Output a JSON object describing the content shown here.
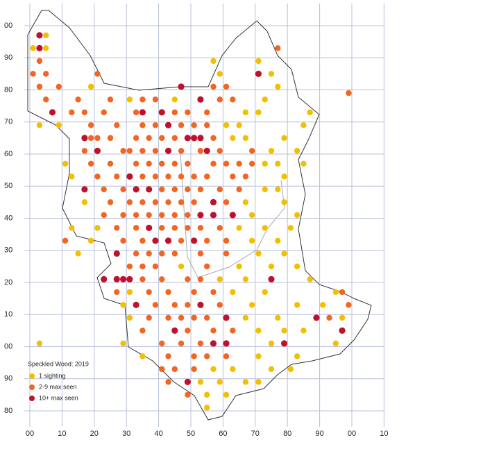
{
  "map": {
    "x_labels": [
      "00",
      "10",
      "20",
      "30",
      "40",
      "50",
      "60",
      "70",
      "80",
      "90",
      "00",
      "10"
    ],
    "y_labels": [
      "00",
      "90",
      "80",
      "70",
      "60",
      "50",
      "40",
      "30",
      "20",
      "10",
      "00",
      "90",
      "80"
    ],
    "legend": {
      "title": "Speckled Wood:  2019",
      "items": [
        {
          "label": "1 sighting",
          "color": "#f2c000"
        },
        {
          "label": "2-9 max seen",
          "color": "#f26522"
        },
        {
          "label": "10+ max seen",
          "color": "#c0102e"
        }
      ]
    },
    "dots": [
      [
        3,
        97,
        2
      ],
      [
        5,
        97,
        0
      ],
      [
        1,
        93,
        0
      ],
      [
        3,
        93,
        2
      ],
      [
        5,
        93,
        0
      ],
      [
        77,
        93,
        1
      ],
      [
        3,
        89,
        1
      ],
      [
        57,
        89,
        0
      ],
      [
        71,
        89,
        0
      ],
      [
        1,
        85,
        1
      ],
      [
        5,
        85,
        1
      ],
      [
        21,
        85,
        1
      ],
      [
        71,
        85,
        2
      ],
      [
        59,
        85,
        0
      ],
      [
        75,
        85,
        0
      ],
      [
        3,
        81,
        1
      ],
      [
        9,
        81,
        1
      ],
      [
        19,
        81,
        0
      ],
      [
        47,
        81,
        2
      ],
      [
        57,
        81,
        1
      ],
      [
        61,
        81,
        1
      ],
      [
        77,
        81,
        0
      ],
      [
        99,
        79,
        1
      ],
      [
        5,
        77,
        1
      ],
      [
        15,
        77,
        1
      ],
      [
        25,
        77,
        1
      ],
      [
        31,
        77,
        0
      ],
      [
        35,
        77,
        1
      ],
      [
        39,
        77,
        1
      ],
      [
        45,
        77,
        0
      ],
      [
        53,
        77,
        2
      ],
      [
        59,
        77,
        1
      ],
      [
        63,
        77,
        1
      ],
      [
        73,
        77,
        0
      ],
      [
        7,
        73,
        2
      ],
      [
        13,
        73,
        1
      ],
      [
        17,
        73,
        1
      ],
      [
        23,
        73,
        1
      ],
      [
        33,
        73,
        1
      ],
      [
        35,
        73,
        2
      ],
      [
        41,
        73,
        2
      ],
      [
        45,
        73,
        1
      ],
      [
        49,
        73,
        1
      ],
      [
        55,
        73,
        1
      ],
      [
        67,
        73,
        0
      ],
      [
        71,
        73,
        0
      ],
      [
        87,
        73,
        0
      ],
      [
        3,
        69,
        0
      ],
      [
        9,
        69,
        0
      ],
      [
        19,
        69,
        1
      ],
      [
        27,
        69,
        1
      ],
      [
        35,
        69,
        1
      ],
      [
        39,
        69,
        1
      ],
      [
        43,
        69,
        2
      ],
      [
        47,
        69,
        1
      ],
      [
        51,
        69,
        1
      ],
      [
        55,
        69,
        1
      ],
      [
        61,
        69,
        0
      ],
      [
        65,
        69,
        0
      ],
      [
        85,
        69,
        0
      ],
      [
        17,
        65,
        2
      ],
      [
        19,
        65,
        1
      ],
      [
        21,
        65,
        1
      ],
      [
        25,
        65,
        1
      ],
      [
        33,
        65,
        1
      ],
      [
        37,
        65,
        1
      ],
      [
        41,
        65,
        1
      ],
      [
        45,
        65,
        1
      ],
      [
        49,
        65,
        2
      ],
      [
        51,
        65,
        2
      ],
      [
        53,
        65,
        2
      ],
      [
        57,
        65,
        1
      ],
      [
        63,
        65,
        0
      ],
      [
        67,
        65,
        0
      ],
      [
        79,
        65,
        0
      ],
      [
        21,
        61,
        2
      ],
      [
        17,
        61,
        1
      ],
      [
        29,
        61,
        1
      ],
      [
        31,
        61,
        1
      ],
      [
        35,
        61,
        1
      ],
      [
        39,
        61,
        1
      ],
      [
        43,
        61,
        2
      ],
      [
        47,
        61,
        1
      ],
      [
        53,
        61,
        1
      ],
      [
        55,
        61,
        2
      ],
      [
        59,
        61,
        1
      ],
      [
        69,
        61,
        1
      ],
      [
        75,
        61,
        0
      ],
      [
        83,
        61,
        0
      ],
      [
        11,
        57,
        0
      ],
      [
        19,
        57,
        1
      ],
      [
        25,
        57,
        1
      ],
      [
        33,
        57,
        1
      ],
      [
        37,
        57,
        1
      ],
      [
        41,
        57,
        1
      ],
      [
        45,
        57,
        1
      ],
      [
        49,
        57,
        1
      ],
      [
        57,
        57,
        1
      ],
      [
        61,
        57,
        1
      ],
      [
        65,
        57,
        1
      ],
      [
        69,
        57,
        1
      ],
      [
        73,
        57,
        0
      ],
      [
        77,
        57,
        0
      ],
      [
        85,
        57,
        0
      ],
      [
        13,
        53,
        0
      ],
      [
        21,
        53,
        1
      ],
      [
        27,
        53,
        1
      ],
      [
        31,
        53,
        2
      ],
      [
        35,
        53,
        1
      ],
      [
        39,
        53,
        1
      ],
      [
        43,
        53,
        1
      ],
      [
        47,
        53,
        1
      ],
      [
        51,
        53,
        1
      ],
      [
        55,
        53,
        1
      ],
      [
        63,
        53,
        1
      ],
      [
        67,
        53,
        1
      ],
      [
        79,
        53,
        0
      ],
      [
        17,
        49,
        2
      ],
      [
        23,
        49,
        1
      ],
      [
        29,
        49,
        1
      ],
      [
        33,
        49,
        2
      ],
      [
        37,
        49,
        2
      ],
      [
        41,
        49,
        1
      ],
      [
        45,
        49,
        1
      ],
      [
        49,
        49,
        1
      ],
      [
        53,
        49,
        1
      ],
      [
        59,
        49,
        1
      ],
      [
        65,
        49,
        1
      ],
      [
        73,
        49,
        0
      ],
      [
        77,
        49,
        0
      ],
      [
        17,
        45,
        0
      ],
      [
        25,
        45,
        1
      ],
      [
        31,
        45,
        1
      ],
      [
        35,
        45,
        1
      ],
      [
        39,
        45,
        1
      ],
      [
        43,
        45,
        1
      ],
      [
        47,
        45,
        1
      ],
      [
        51,
        45,
        1
      ],
      [
        57,
        45,
        2
      ],
      [
        61,
        45,
        1
      ],
      [
        67,
        45,
        0
      ],
      [
        79,
        45,
        0
      ],
      [
        23,
        41,
        1
      ],
      [
        29,
        41,
        1
      ],
      [
        33,
        41,
        1
      ],
      [
        37,
        41,
        1
      ],
      [
        41,
        41,
        1
      ],
      [
        45,
        41,
        1
      ],
      [
        49,
        41,
        1
      ],
      [
        53,
        41,
        2
      ],
      [
        57,
        41,
        2
      ],
      [
        63,
        41,
        2
      ],
      [
        69,
        41,
        0
      ],
      [
        83,
        41,
        0
      ],
      [
        13,
        37,
        0
      ],
      [
        21,
        37,
        0
      ],
      [
        27,
        37,
        1
      ],
      [
        33,
        37,
        1
      ],
      [
        37,
        37,
        2
      ],
      [
        41,
        37,
        1
      ],
      [
        45,
        37,
        1
      ],
      [
        49,
        37,
        1
      ],
      [
        53,
        37,
        1
      ],
      [
        59,
        37,
        1
      ],
      [
        65,
        37,
        0
      ],
      [
        73,
        37,
        0
      ],
      [
        81,
        37,
        0
      ],
      [
        11,
        33,
        1
      ],
      [
        19,
        33,
        0
      ],
      [
        29,
        33,
        1
      ],
      [
        35,
        33,
        1
      ],
      [
        39,
        33,
        2
      ],
      [
        43,
        33,
        2
      ],
      [
        47,
        33,
        1
      ],
      [
        51,
        33,
        2
      ],
      [
        55,
        33,
        1
      ],
      [
        61,
        33,
        1
      ],
      [
        69,
        33,
        0
      ],
      [
        77,
        33,
        0
      ],
      [
        15,
        29,
        0
      ],
      [
        27,
        29,
        2
      ],
      [
        33,
        29,
        1
      ],
      [
        37,
        29,
        1
      ],
      [
        41,
        29,
        1
      ],
      [
        45,
        29,
        1
      ],
      [
        53,
        29,
        1
      ],
      [
        61,
        29,
        1
      ],
      [
        71,
        29,
        0
      ],
      [
        79,
        29,
        0
      ],
      [
        31,
        25,
        1
      ],
      [
        35,
        25,
        1
      ],
      [
        39,
        25,
        1
      ],
      [
        47,
        25,
        0
      ],
      [
        55,
        25,
        1
      ],
      [
        65,
        25,
        0
      ],
      [
        75,
        25,
        0
      ],
      [
        83,
        25,
        0
      ],
      [
        23,
        21,
        2
      ],
      [
        27,
        21,
        2
      ],
      [
        29,
        21,
        2
      ],
      [
        31,
        21,
        2
      ],
      [
        35,
        21,
        1
      ],
      [
        41,
        21,
        1
      ],
      [
        49,
        21,
        1
      ],
      [
        53,
        21,
        1
      ],
      [
        59,
        21,
        0
      ],
      [
        67,
        21,
        0
      ],
      [
        75,
        21,
        2
      ],
      [
        87,
        21,
        0
      ],
      [
        27,
        17,
        1
      ],
      [
        31,
        17,
        0
      ],
      [
        37,
        17,
        1
      ],
      [
        43,
        17,
        1
      ],
      [
        51,
        17,
        1
      ],
      [
        57,
        17,
        1
      ],
      [
        63,
        17,
        0
      ],
      [
        73,
        17,
        0
      ],
      [
        95,
        17,
        0
      ],
      [
        97,
        17,
        1
      ],
      [
        29,
        13,
        0
      ],
      [
        33,
        13,
        2
      ],
      [
        39,
        13,
        1
      ],
      [
        45,
        13,
        1
      ],
      [
        49,
        13,
        1
      ],
      [
        53,
        13,
        2
      ],
      [
        59,
        13,
        1
      ],
      [
        69,
        13,
        0
      ],
      [
        83,
        13,
        0
      ],
      [
        91,
        13,
        0
      ],
      [
        99,
        13,
        1
      ],
      [
        31,
        9,
        0
      ],
      [
        37,
        9,
        1
      ],
      [
        43,
        9,
        1
      ],
      [
        47,
        9,
        1
      ],
      [
        51,
        9,
        1
      ],
      [
        55,
        9,
        1
      ],
      [
        61,
        9,
        2
      ],
      [
        67,
        9,
        0
      ],
      [
        77,
        9,
        0
      ],
      [
        89,
        9,
        2
      ],
      [
        93,
        9,
        1
      ],
      [
        97,
        9,
        0
      ],
      [
        35,
        5,
        1
      ],
      [
        45,
        5,
        2
      ],
      [
        49,
        5,
        1
      ],
      [
        57,
        5,
        1
      ],
      [
        63,
        5,
        1
      ],
      [
        71,
        5,
        0
      ],
      [
        79,
        5,
        0
      ],
      [
        85,
        5,
        0
      ],
      [
        97,
        5,
        2
      ],
      [
        3,
        1,
        0
      ],
      [
        29,
        1,
        0
      ],
      [
        41,
        1,
        1
      ],
      [
        47,
        1,
        1
      ],
      [
        53,
        1,
        1
      ],
      [
        57,
        1,
        2
      ],
      [
        61,
        1,
        2
      ],
      [
        75,
        1,
        0
      ],
      [
        79,
        1,
        2
      ],
      [
        95,
        1,
        0
      ],
      [
        35,
        -3,
        0
      ],
      [
        43,
        -3,
        1
      ],
      [
        51,
        -3,
        1
      ],
      [
        55,
        -3,
        1
      ],
      [
        61,
        -3,
        1
      ],
      [
        71,
        -3,
        0
      ],
      [
        83,
        -3,
        0
      ],
      [
        41,
        -7,
        1
      ],
      [
        45,
        -7,
        1
      ],
      [
        51,
        -7,
        1
      ],
      [
        57,
        -7,
        0
      ],
      [
        63,
        -7,
        0
      ],
      [
        75,
        -7,
        0
      ],
      [
        81,
        -7,
        0
      ],
      [
        43,
        -11,
        1
      ],
      [
        49,
        -11,
        2
      ],
      [
        53,
        -11,
        0
      ],
      [
        59,
        -11,
        0
      ],
      [
        67,
        -11,
        0
      ],
      [
        71,
        -11,
        0
      ],
      [
        49,
        -15,
        1
      ],
      [
        55,
        -15,
        0
      ],
      [
        61,
        -15,
        0
      ],
      [
        55,
        -19,
        0
      ]
    ]
  }
}
